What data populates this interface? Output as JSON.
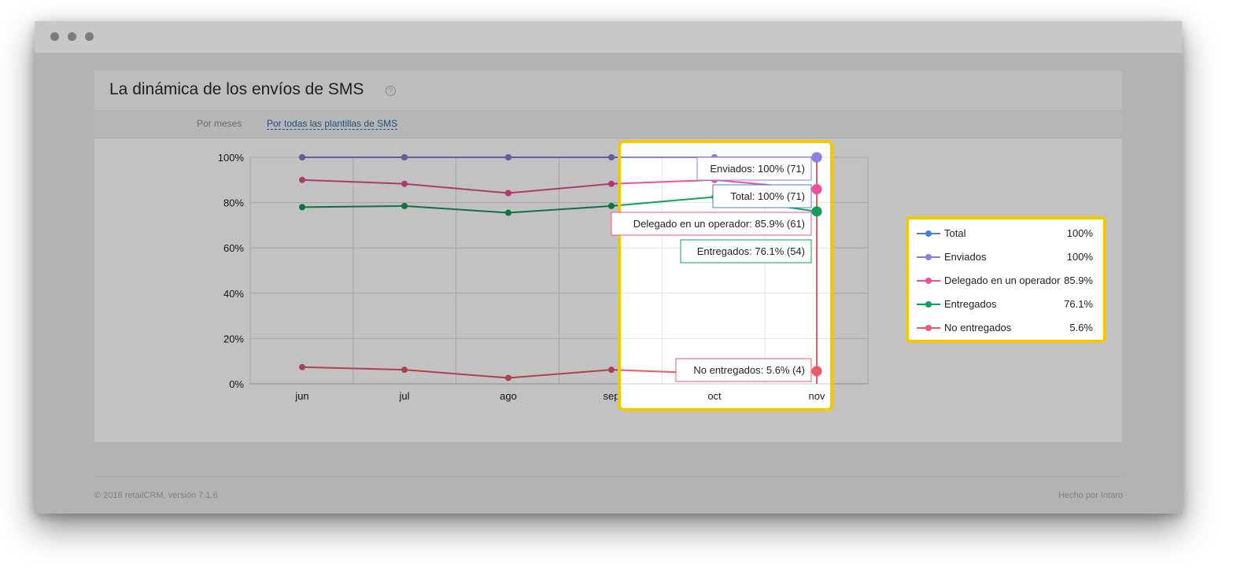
{
  "page": {
    "title": "La dinámica de los envíos de SMS",
    "help_symbol": "?"
  },
  "tabs": [
    {
      "label": "Por meses",
      "active": false
    },
    {
      "label": "Por todas las plantillas de SMS",
      "active": true
    }
  ],
  "chart_data": {
    "type": "line",
    "x": [
      "jun",
      "jul",
      "ago",
      "sep",
      "oct",
      "nov"
    ],
    "y_ticks": [
      "0%",
      "20%",
      "40%",
      "60%",
      "80%",
      "100%"
    ],
    "ylim": [
      0,
      100
    ],
    "grid": true,
    "series": [
      {
        "name": "Total",
        "color": "#4a7fd4",
        "values": [
          100,
          100,
          100,
          100,
          100,
          100
        ]
      },
      {
        "name": "Enviados",
        "color": "#8e7fe0",
        "values": [
          100,
          100,
          100,
          100,
          100,
          100
        ]
      },
      {
        "name": "Delegado en un operador",
        "color": "#f0509a",
        "values": [
          90,
          88.3,
          84.2,
          88.3,
          90,
          85.9
        ]
      },
      {
        "name": "Entregados",
        "color": "#11a05a",
        "values": [
          78,
          78.5,
          75.5,
          78.5,
          82.5,
          76.1
        ]
      },
      {
        "name": "No entregados",
        "color": "#ee5a6c",
        "values": [
          7.4,
          6.2,
          2.6,
          6.2,
          4.5,
          5.6
        ]
      }
    ],
    "tooltip": {
      "category": "nov",
      "items": [
        {
          "series": "Enviados",
          "text": "Enviados: 100% (71)",
          "color": "#8e7fe0"
        },
        {
          "series": "Total",
          "text": "Total: 100% (71)",
          "color": "#4a7fd4"
        },
        {
          "series": "Delegado en un operador",
          "text": "Delegado en un operador: 85.9% (61)",
          "color": "#f0509a"
        },
        {
          "series": "Entregados",
          "text": "Entregados: 76.1% (54)",
          "color": "#11a05a"
        },
        {
          "series": "No entregados",
          "text": "No entregados: 5.6% (4)",
          "color": "#ee5a6c"
        }
      ]
    }
  },
  "legend": [
    {
      "label": "Total",
      "value": "100%",
      "color": "#4a7fd4"
    },
    {
      "label": "Enviados",
      "value": "100%",
      "color": "#8e7fe0"
    },
    {
      "label": "Delegado en un operador",
      "value": "85.9%",
      "color": "#f0509a"
    },
    {
      "label": "Entregados",
      "value": "76.1%",
      "color": "#11a05a"
    },
    {
      "label": "No entregados",
      "value": "5.6%",
      "color": "#ee5a6c"
    }
  ],
  "footer": {
    "left": "© 2018 retailCRM, versión 7.1.6",
    "right": "Hecho por Intaro"
  },
  "highlight_color": "#f6c800"
}
